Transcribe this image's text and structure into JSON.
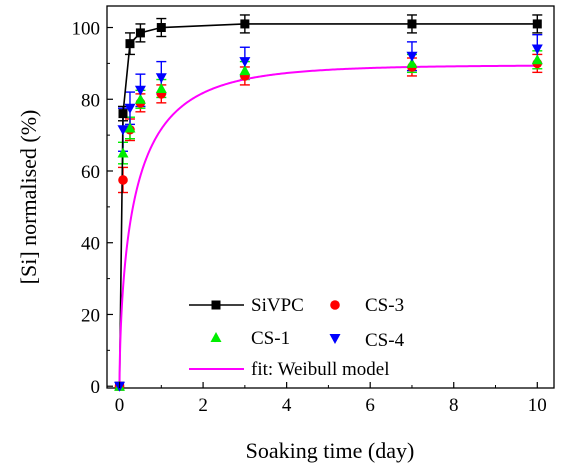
{
  "chart_data": {
    "type": "scatter",
    "xlabel": "Soaking time (day)",
    "ylabel": "[Si] normalised (%)",
    "xlim": [
      -0.3,
      10.4
    ],
    "ylim": [
      -0.5,
      106
    ],
    "xticks": [
      0,
      2,
      4,
      6,
      8,
      10
    ],
    "yticks": [
      0,
      20,
      40,
      60,
      80,
      100
    ],
    "x_tick_labels": [
      "0",
      "2",
      "4",
      "6",
      "8",
      "10"
    ],
    "y_tick_labels": [
      "0",
      "20",
      "40",
      "60",
      "80",
      "100"
    ],
    "grid": false,
    "legend_position": "bottom-right",
    "series": [
      {
        "name": "SiVPC",
        "marker": "square",
        "color": "#000000",
        "connected": true,
        "x": [
          0,
          0.083,
          0.25,
          0.5,
          1,
          3,
          7,
          10
        ],
        "y": [
          0,
          76,
          95.5,
          98.5,
          100,
          101,
          101,
          101
        ],
        "err": [
          0,
          2,
          3,
          2.5,
          2.5,
          2.5,
          2.5,
          2.5
        ]
      },
      {
        "name": "CS-3",
        "marker": "circle",
        "color": "#ff0000",
        "connected": false,
        "x": [
          0,
          0.083,
          0.25,
          0.5,
          1,
          3,
          7,
          10
        ],
        "y": [
          0,
          57.5,
          71.5,
          79,
          81.5,
          86.5,
          89,
          90
        ],
        "err": [
          0,
          3.5,
          3,
          2.5,
          2.5,
          2.5,
          2.5,
          2.5
        ]
      },
      {
        "name": "CS-1",
        "marker": "triangle-up",
        "color": "#00ee00",
        "connected": false,
        "x": [
          0,
          0.083,
          0.25,
          0.5,
          1,
          3,
          7,
          10
        ],
        "y": [
          0,
          65,
          72,
          80,
          83,
          88,
          90,
          91
        ],
        "err": [
          0,
          3,
          3,
          2.5,
          2.5,
          2.5,
          2.5,
          2.5
        ]
      },
      {
        "name": "CS-4",
        "marker": "triangle-down",
        "color": "#0000ff",
        "connected": false,
        "x": [
          0,
          0.083,
          0.25,
          0.5,
          1,
          3,
          7,
          10
        ],
        "y": [
          0,
          71.5,
          77.5,
          82.5,
          86,
          90.5,
          92,
          94
        ],
        "err": [
          0,
          6,
          4.5,
          4.5,
          4.5,
          4,
          4,
          4
        ]
      }
    ],
    "fit": {
      "name": "fit: Weibull model",
      "color": "#ff00ff",
      "model": "weibull",
      "ymax": 89.5,
      "tau": 0.45,
      "beta": 0.6
    }
  }
}
